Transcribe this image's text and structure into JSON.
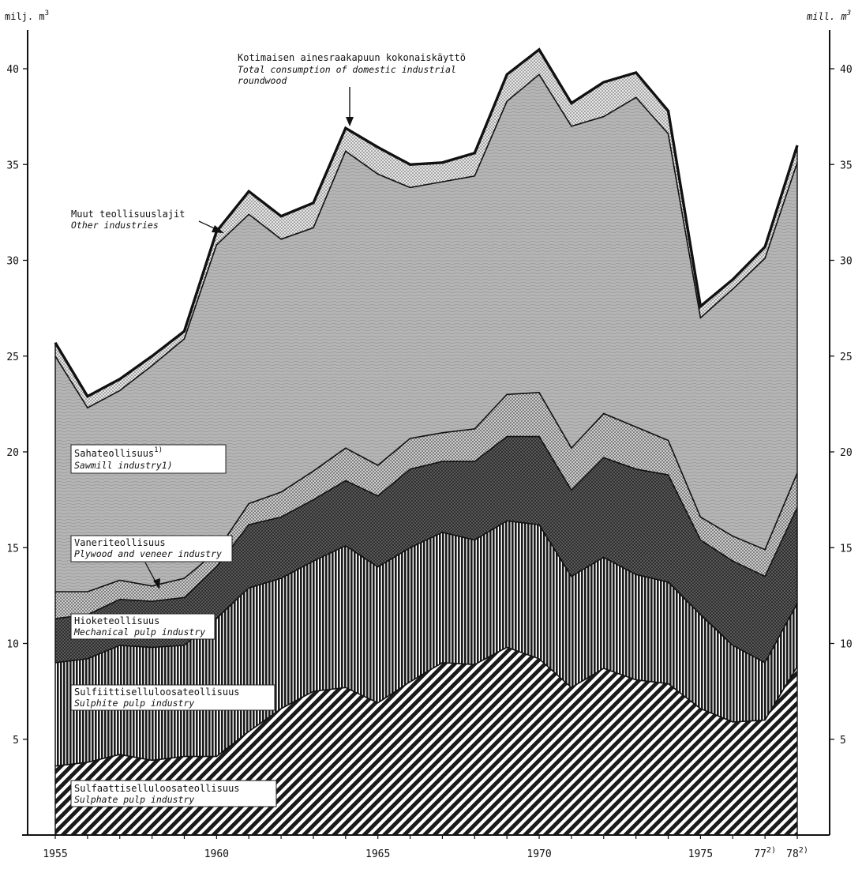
{
  "chart_data": {
    "type": "area",
    "stacked": true,
    "unit_left": "milj. m",
    "unit_right": "mill. m",
    "unit_superscript": "3",
    "xlim": [
      1955,
      1978
    ],
    "ylim": [
      0,
      42
    ],
    "x": [
      1955,
      1956,
      1957,
      1958,
      1959,
      1960,
      1961,
      1962,
      1963,
      1964,
      1965,
      1966,
      1967,
      1968,
      1969,
      1970,
      1971,
      1972,
      1973,
      1974,
      1975,
      1976,
      1977,
      1978
    ],
    "x_ticks": [
      {
        "value": 1955,
        "label": "1955"
      },
      {
        "value": 1960,
        "label": "1960"
      },
      {
        "value": 1965,
        "label": "1965"
      },
      {
        "value": 1970,
        "label": "1970"
      },
      {
        "value": 1975,
        "label": "1975"
      },
      {
        "value": 1977,
        "label": "77",
        "sup": "2)"
      },
      {
        "value": 1978,
        "label": "78",
        "sup": "2)"
      }
    ],
    "y_ticks": [
      5,
      10,
      15,
      20,
      25,
      30,
      35,
      40
    ],
    "series": [
      {
        "name": "Sulfaattiselluloosateollisuus",
        "name_en": "Sulphate pulp industry",
        "pattern": "diag-hatch",
        "cumulative": [
          3.6,
          3.8,
          4.2,
          3.9,
          4.1,
          4.1,
          5.4,
          6.6,
          7.5,
          7.7,
          6.9,
          8.0,
          9.0,
          8.9,
          9.8,
          9.2,
          7.7,
          8.7,
          8.1,
          7.9,
          6.6,
          5.9,
          6.0,
          8.8
        ]
      },
      {
        "name": "Sulfiittiselluloosateollisuus",
        "name_en": "Sulphite pulp industry",
        "pattern": "vertical",
        "cumulative": [
          9.0,
          9.2,
          9.9,
          9.8,
          9.9,
          11.3,
          12.9,
          13.4,
          14.3,
          15.1,
          14.0,
          15.0,
          15.8,
          15.4,
          16.4,
          16.2,
          13.5,
          14.5,
          13.6,
          13.2,
          11.5,
          9.9,
          9.0,
          12.1
        ]
      },
      {
        "name": "Hioketeollisuus",
        "name_en": "Mechanical pulp industry",
        "pattern": "crosshatch",
        "cumulative": [
          11.3,
          11.5,
          12.3,
          12.2,
          12.4,
          14.0,
          16.2,
          16.6,
          17.5,
          18.5,
          17.7,
          19.1,
          19.5,
          19.5,
          20.8,
          20.8,
          18.0,
          19.7,
          19.1,
          18.8,
          15.4,
          14.3,
          13.5,
          17.1
        ]
      },
      {
        "name": "Vaneriteollisuus",
        "name_en": "Plywood and veneer industry",
        "pattern": "fine-dots",
        "cumulative": [
          12.7,
          12.7,
          13.3,
          13.0,
          13.4,
          14.8,
          17.3,
          17.9,
          19.0,
          20.2,
          19.3,
          20.7,
          21.0,
          21.2,
          23.0,
          23.1,
          20.2,
          22.0,
          21.3,
          20.6,
          16.6,
          15.6,
          14.9,
          18.9
        ]
      },
      {
        "name": "Sahateollisuus",
        "name_en": "Sawmill industry",
        "note": "1)",
        "pattern": "wavy-grey",
        "cumulative": [
          25.0,
          22.3,
          23.2,
          24.5,
          25.9,
          30.8,
          32.4,
          31.1,
          31.7,
          35.7,
          34.5,
          33.8,
          34.1,
          34.4,
          38.3,
          39.7,
          37.0,
          37.5,
          38.5,
          36.6,
          27.0,
          28.5,
          30.1,
          35.1
        ]
      },
      {
        "name": "Muut teollisuuslajit",
        "name_en": "Other industries",
        "pattern": "coarse-dots",
        "cumulative": [
          25.7,
          22.9,
          23.8,
          25.0,
          26.3,
          31.5,
          33.6,
          32.3,
          33.0,
          36.9,
          35.9,
          35.0,
          35.1,
          35.6,
          39.7,
          41.0,
          38.2,
          39.3,
          39.8,
          37.8,
          27.6,
          29.0,
          30.7,
          36.0
        ]
      }
    ],
    "total_line": {
      "name": "Kotimaisen ainesraakapuun kokonaiskäyttö",
      "name_en_line1": "Total consumption of domestic industrial",
      "name_en_line2": "roundwood"
    }
  },
  "labels": {
    "sulfaatti_fi": "Sulfaattiselluloosateollisuus",
    "sulfaatti_en": "Sulphate pulp industry",
    "sulfiitti_fi": "Sulfiittiselluloosateollisuus",
    "sulfiitti_en": "Sulphite pulp industry",
    "hioke_fi": "Hioketeollisuus",
    "hioke_en": "Mechanical pulp industry",
    "vaneri_fi": "Vaneriteollisuus",
    "vaneri_en": "Plywood and veneer industry",
    "saha_fi": "Sahateollisuus",
    "saha_sup": "1)",
    "saha_en": "Sawmill industry1)",
    "muut_fi": "Muut teollisuuslajit",
    "muut_en": "Other industries",
    "total_fi": "Kotimaisen ainesraakapuun kokonaiskäyttö",
    "total_en1": "Total consumption of domestic industrial",
    "total_en2": "roundwood"
  }
}
